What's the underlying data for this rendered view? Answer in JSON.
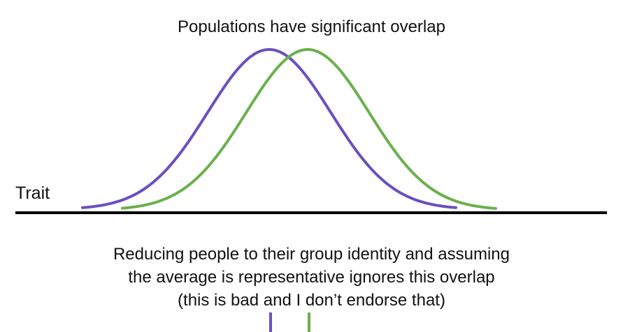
{
  "diagram": {
    "title": "Populations have significant overlap",
    "axis_label": "Trait",
    "caption_lines": [
      "Reducing people to their group identity and assuming",
      "the average is representative ignores this overlap",
      "(this is bad and I don’t endorse that)"
    ],
    "colors": {
      "population_a": "#6a4fc0",
      "population_b": "#6ab04c",
      "axis": "#000000"
    }
  }
}
